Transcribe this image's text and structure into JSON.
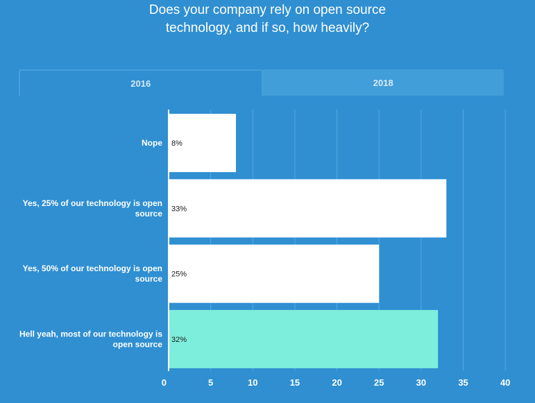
{
  "title_lines": [
    "Does your company rely on open source",
    "technology, and if so, how heavily?"
  ],
  "tabs": [
    {
      "label": "2016",
      "active": true
    },
    {
      "label": "2018",
      "active": false
    }
  ],
  "colors": {
    "background": "#2f8fd1",
    "bar": "#ffffff",
    "highlight_bar": "#7eeedc",
    "gridline": "#57a8df"
  },
  "chart_data": {
    "type": "bar",
    "orientation": "horizontal",
    "title": "Does your company rely on open source technology, and if so, how heavily?",
    "categories": [
      [
        "Nope"
      ],
      [
        "Yes, 25% of our technology is open",
        "source"
      ],
      [
        "Yes, 50% of our technology is open",
        "source"
      ],
      [
        "Hell yeah, most of our technology is",
        "open source"
      ]
    ],
    "values": [
      8,
      33,
      25,
      32
    ],
    "value_labels": [
      "8%",
      "33%",
      "25%",
      "32%"
    ],
    "highlight_index": 3,
    "xlim": [
      0,
      40
    ],
    "xticks": [
      0,
      5,
      10,
      15,
      20,
      25,
      30,
      35,
      40
    ],
    "grid": true
  }
}
